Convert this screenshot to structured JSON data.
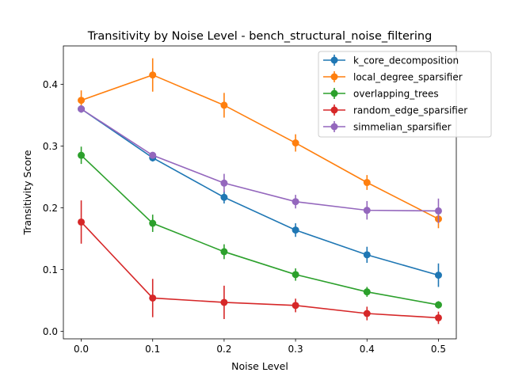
{
  "chart_data": {
    "type": "line",
    "title": "Transitivity by Noise Level - bench_structural_noise_filtering",
    "xlabel": "Noise Level",
    "ylabel": "Transitivity Score",
    "x": [
      0.0,
      0.1,
      0.2,
      0.3,
      0.4,
      0.5
    ],
    "x_ticks": [
      "0.0",
      "0.1",
      "0.2",
      "0.3",
      "0.4",
      "0.5"
    ],
    "y_ticks": [
      "0.0",
      "0.1",
      "0.2",
      "0.3",
      "0.4"
    ],
    "xlim": [
      -0.025,
      0.525
    ],
    "ylim": [
      -0.012,
      0.462
    ],
    "grid": false,
    "legend_position": "top-right",
    "series": [
      {
        "name": "k_core_decomposition",
        "color": "#1f77b4",
        "values": [
          0.36,
          0.281,
          0.217,
          0.164,
          0.124,
          0.091
        ],
        "errors": [
          0.006,
          0.006,
          0.01,
          0.011,
          0.013,
          0.019
        ]
      },
      {
        "name": "local_degree_sparsifier",
        "color": "#ff7f0e",
        "values": [
          0.374,
          0.415,
          0.366,
          0.305,
          0.241,
          0.182
        ],
        "errors": [
          0.016,
          0.027,
          0.02,
          0.014,
          0.012,
          0.015
        ]
      },
      {
        "name": "overlapping_trees",
        "color": "#2ca02c",
        "values": [
          0.285,
          0.175,
          0.129,
          0.092,
          0.064,
          0.043
        ],
        "errors": [
          0.014,
          0.014,
          0.012,
          0.01,
          0.008,
          0.006
        ]
      },
      {
        "name": "random_edge_sparsifier",
        "color": "#d62728",
        "values": [
          0.177,
          0.054,
          0.047,
          0.042,
          0.029,
          0.022
        ],
        "errors": [
          0.035,
          0.031,
          0.027,
          0.011,
          0.011,
          0.01
        ]
      },
      {
        "name": "simmelian_sparsifier",
        "color": "#9467bd",
        "values": [
          0.36,
          0.285,
          0.24,
          0.21,
          0.196,
          0.195
        ],
        "errors": [
          0.006,
          0.005,
          0.015,
          0.011,
          0.015,
          0.02
        ]
      }
    ]
  }
}
